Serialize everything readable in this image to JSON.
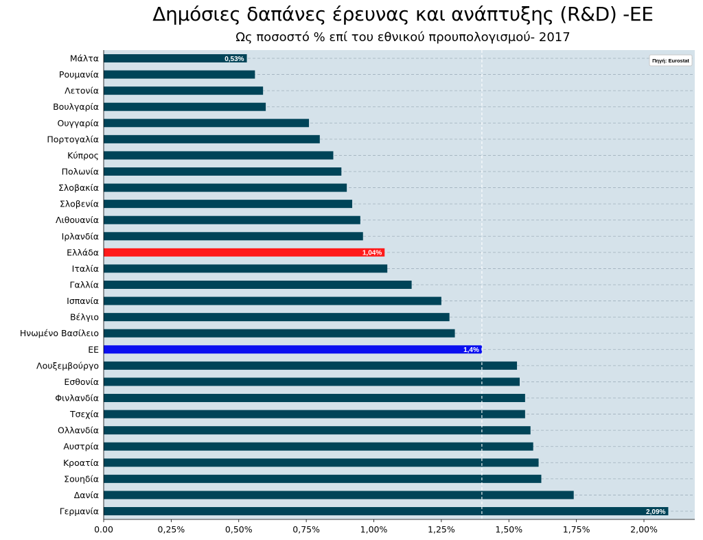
{
  "chart_data": {
    "type": "bar",
    "orientation": "horizontal",
    "title": "Δημόσιες δαπάνες έρευνας και ανάπτυξης (R&D) -ΕΕ",
    "subtitle": "Ως ποσοστό % επί του εθνικού προυπολογισμού- 2017",
    "categories": [
      "Μάλτα",
      "Ρουμανία",
      "Λετονία",
      "Βουλγαρία",
      "Ουγγαρία",
      "Πορτογαλία",
      "Κύπρος",
      "Πολωνία",
      "Σλοβακία",
      "Σλοβενία",
      "Λιθουανία",
      "Ιρλανδία",
      "Ελλάδα",
      "Ιταλία",
      "Γαλλία",
      "Ισπανία",
      "Βέλγιο",
      "Ηνωμένο Βασίλειο",
      "ΕΕ",
      "Λουξεμβούργο",
      "Εσθονία",
      "Φινλανδία",
      "Τσεχία",
      "Ολλανδία",
      "Αυστρία",
      "Κροατία",
      "Σουηδία",
      "Δανία",
      "Γερμανία"
    ],
    "values": [
      0.53,
      0.56,
      0.59,
      0.6,
      0.76,
      0.8,
      0.85,
      0.88,
      0.9,
      0.92,
      0.95,
      0.96,
      1.04,
      1.05,
      1.14,
      1.25,
      1.28,
      1.3,
      1.4,
      1.53,
      1.54,
      1.56,
      1.56,
      1.58,
      1.59,
      1.61,
      1.62,
      1.74,
      2.09
    ],
    "bar_colors": [
      "#004458",
      "#004458",
      "#004458",
      "#004458",
      "#004458",
      "#004458",
      "#004458",
      "#004458",
      "#004458",
      "#004458",
      "#004458",
      "#004458",
      "#ff1a1a",
      "#004458",
      "#004458",
      "#004458",
      "#004458",
      "#004458",
      "#0a0ff0",
      "#004458",
      "#004458",
      "#004458",
      "#004458",
      "#004458",
      "#004458",
      "#004458",
      "#004458",
      "#004458",
      "#004458"
    ],
    "data_labels": [
      {
        "index": 0,
        "text": "0,53%"
      },
      {
        "index": 12,
        "text": "1,04%"
      },
      {
        "index": 18,
        "text": "1,4%"
      },
      {
        "index": 28,
        "text": "2,09%"
      }
    ],
    "xlim": [
      0,
      2.2
    ],
    "xticks": [
      0,
      0.25,
      0.5,
      0.75,
      1.0,
      1.25,
      1.5,
      1.75,
      2.0
    ],
    "xtick_labels": [
      "0.00",
      "0,25%",
      "0,50%",
      "0,75%",
      "1,00%",
      "1,25%",
      "1,50%",
      "1,75%",
      "2,00%"
    ],
    "reference_line": 1.4,
    "grid": "horizontal dashed",
    "legend": "top-right",
    "source_label": "Πηγή: Eurostat"
  },
  "colors": {
    "plot_background": "#d5e2ea",
    "default_bar": "#004458",
    "highlight_greece": "#ff1a1a",
    "highlight_eu": "#0a0ff0"
  }
}
